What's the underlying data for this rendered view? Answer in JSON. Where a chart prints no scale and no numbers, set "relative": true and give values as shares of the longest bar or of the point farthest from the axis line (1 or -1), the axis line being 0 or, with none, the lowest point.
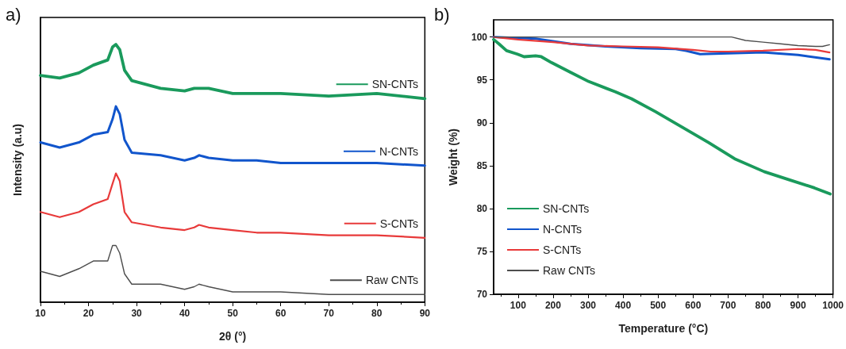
{
  "chart_data": [
    {
      "type": "line",
      "title": "a)",
      "xlabel": "2θ (°)",
      "ylabel": "Intensity (a.u)",
      "relative": true,
      "xlim": [
        10,
        90
      ],
      "xticks": [
        10,
        20,
        30,
        40,
        50,
        60,
        70,
        80,
        90
      ],
      "grid": false,
      "legend": "right",
      "marker": "none",
      "line_style": "solid",
      "x": [
        10,
        14,
        18,
        21,
        24,
        25,
        25.7,
        26.5,
        27.5,
        29,
        35,
        40,
        42,
        43,
        45,
        50,
        55,
        60,
        70,
        80,
        90
      ],
      "series": [
        {
          "name": "SN-CNTs",
          "color": "#1a9a5c",
          "values": [
            0.88,
            0.87,
            0.89,
            0.92,
            0.94,
            0.99,
            1.0,
            0.98,
            0.9,
            0.86,
            0.83,
            0.82,
            0.83,
            0.83,
            0.83,
            0.81,
            0.81,
            0.81,
            0.8,
            0.81,
            0.79
          ]
        },
        {
          "name": "N-CNTs",
          "color": "#1155cc",
          "values": [
            0.62,
            0.6,
            0.62,
            0.65,
            0.66,
            0.71,
            0.76,
            0.73,
            0.63,
            0.58,
            0.57,
            0.55,
            0.56,
            0.57,
            0.56,
            0.55,
            0.55,
            0.54,
            0.54,
            0.54,
            0.53
          ]
        },
        {
          "name": "S-CNTs",
          "color": "#e83a3a",
          "values": [
            0.35,
            0.33,
            0.35,
            0.38,
            0.4,
            0.46,
            0.5,
            0.47,
            0.35,
            0.31,
            0.29,
            0.28,
            0.29,
            0.3,
            0.29,
            0.28,
            0.27,
            0.27,
            0.26,
            0.26,
            0.25
          ]
        },
        {
          "name": "Raw CNTs",
          "color": "#4d4d4d",
          "values": [
            0.12,
            0.1,
            0.13,
            0.16,
            0.16,
            0.22,
            0.22,
            0.19,
            0.11,
            0.07,
            0.07,
            0.05,
            0.06,
            0.07,
            0.06,
            0.04,
            0.04,
            0.04,
            0.03,
            0.03,
            0.03
          ]
        }
      ]
    },
    {
      "type": "line",
      "title": "b)",
      "xlabel": "Temperature (°C)",
      "ylabel": "Weight (%)",
      "xlim": [
        30,
        1000
      ],
      "xticks": [
        100,
        200,
        300,
        400,
        500,
        600,
        700,
        800,
        900,
        1000
      ],
      "ylim": [
        70,
        102
      ],
      "yticks": [
        70,
        75,
        80,
        85,
        90,
        95,
        100
      ],
      "grid": false,
      "legend": "bottom left",
      "marker": "none",
      "line_style": "solid",
      "series": [
        {
          "name": "SN-CNTs",
          "color": "#1a9a5c",
          "x": [
            30,
            45,
            67,
            98,
            117,
            150,
            166,
            196,
            249,
            302,
            378,
            424,
            492,
            568,
            644,
            719,
            803,
            871,
            947,
            992
          ],
          "values": [
            99.7,
            99.2,
            98.4,
            98.0,
            97.7,
            97.8,
            97.7,
            97.0,
            95.9,
            94.8,
            93.6,
            92.8,
            91.3,
            89.5,
            87.7,
            85.8,
            84.3,
            83.4,
            82.4,
            81.7
          ]
        },
        {
          "name": "N-CNTs",
          "color": "#1155cc",
          "x": [
            30,
            150,
            250,
            350,
            450,
            550,
            580,
            620,
            700,
            800,
            900,
            990
          ],
          "values": [
            100,
            99.8,
            99.2,
            98.9,
            98.7,
            98.6,
            98.4,
            98.0,
            98.1,
            98.2,
            97.9,
            97.4
          ]
        },
        {
          "name": "S-CNTs",
          "color": "#e83a3a",
          "x": [
            30,
            100,
            200,
            300,
            400,
            500,
            600,
            650,
            700,
            800,
            900,
            950,
            990
          ],
          "values": [
            100,
            99.7,
            99.4,
            99.0,
            98.9,
            98.8,
            98.5,
            98.3,
            98.3,
            98.4,
            98.6,
            98.5,
            98.2
          ]
        },
        {
          "name": "Raw CNTs",
          "color": "#4d4d4d",
          "x": [
            30,
            710,
            750,
            800,
            850,
            900,
            950,
            970,
            990
          ],
          "values": [
            100,
            100,
            99.6,
            99.4,
            99.2,
            99.0,
            98.9,
            98.9,
            99.1
          ]
        }
      ]
    }
  ]
}
